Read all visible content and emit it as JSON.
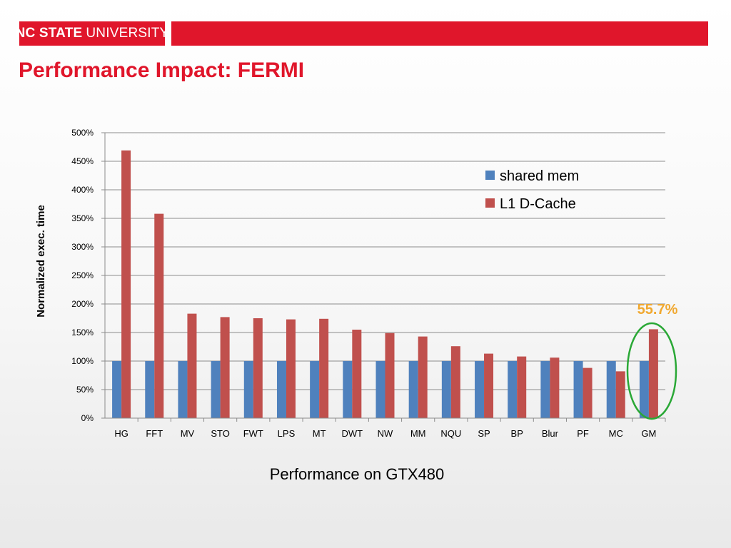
{
  "banner": {
    "logo_bold": "NC STATE",
    "logo_regular": "UNIVERSITY"
  },
  "slide": {
    "title": "Performance Impact: FERMI",
    "footer": "Performance on GTX480"
  },
  "colors": {
    "brand_red": "#e0162b",
    "shared_mem": "#4f81bd",
    "l1_dcache": "#c0504d",
    "highlight_circle": "#2aa836",
    "highlight_text": "#f0a830"
  },
  "chart_data": {
    "type": "bar",
    "title": "",
    "xlabel": "",
    "ylabel": "Normalized exec. time",
    "ylim": [
      0,
      500
    ],
    "y_unit": "%",
    "y_ticks": [
      "0%",
      "50%",
      "100%",
      "150%",
      "200%",
      "250%",
      "300%",
      "350%",
      "400%",
      "450%",
      "500%"
    ],
    "grid": true,
    "legend_position": "top-right",
    "categories": [
      "HG",
      "FFT",
      "MV",
      "STO",
      "FWT",
      "LPS",
      "MT",
      "DWT",
      "NW",
      "MM",
      "NQU",
      "SP",
      "BP",
      "Blur",
      "PF",
      "MC",
      "GM"
    ],
    "series": [
      {
        "name": "shared mem",
        "values": [
          100,
          100,
          100,
          100,
          100,
          100,
          100,
          100,
          100,
          100,
          100,
          100,
          100,
          100,
          100,
          100,
          100
        ]
      },
      {
        "name": "L1 D-Cache",
        "values": [
          469,
          358,
          183,
          177,
          175,
          173,
          174,
          155,
          149,
          143,
          126,
          113,
          108,
          106,
          88,
          82,
          155.7
        ]
      }
    ],
    "annotation": {
      "text": "55.7%",
      "category": "GM"
    }
  }
}
